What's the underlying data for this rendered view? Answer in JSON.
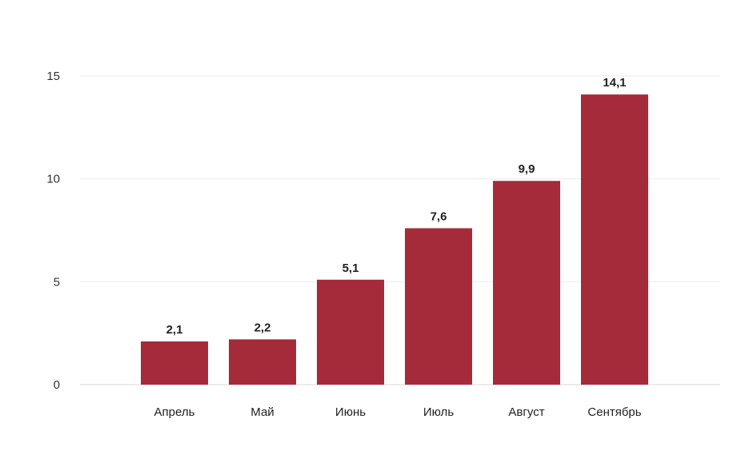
{
  "chart_data": {
    "type": "bar",
    "categories": [
      "Апрель",
      "Май",
      "Июнь",
      "Июль",
      "Август",
      "Сентябрь"
    ],
    "values": [
      2.1,
      2.2,
      5.1,
      7.6,
      9.9,
      14.1
    ],
    "data_labels": [
      "2,1",
      "2,2",
      "5,1",
      "7,6",
      "9,9",
      "14,1"
    ],
    "title": "",
    "xlabel": "",
    "ylabel": "",
    "ylim": [
      0,
      15
    ],
    "yticks": [
      0,
      5,
      10,
      15
    ],
    "ytick_labels": [
      "0",
      "5",
      "10",
      "15"
    ],
    "grid": true,
    "legend": "none",
    "bar_color": "#a52a3a"
  }
}
